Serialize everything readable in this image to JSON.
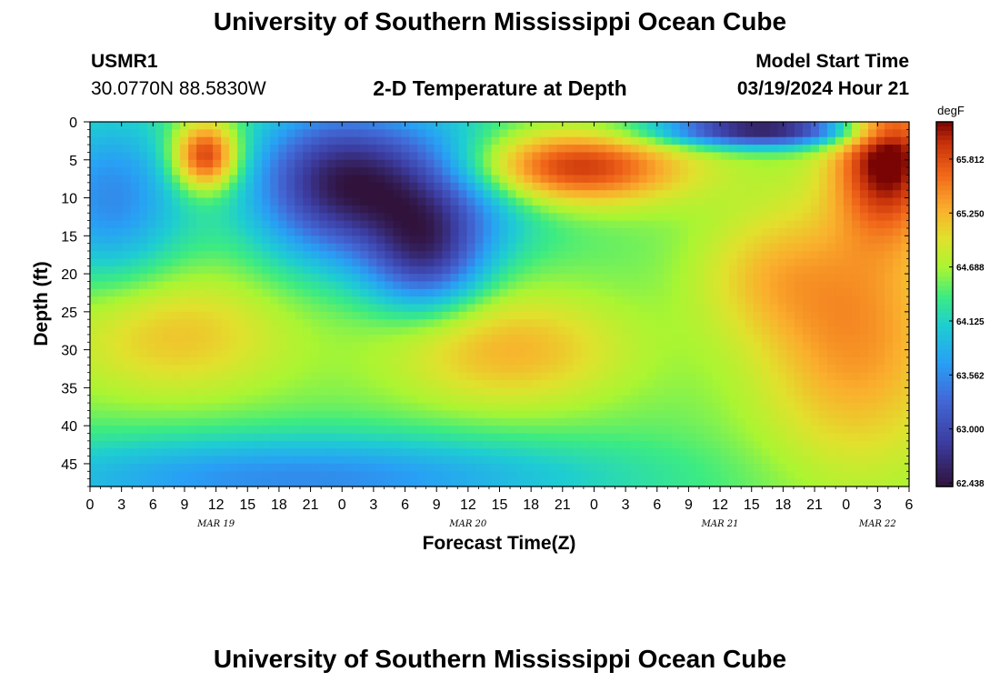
{
  "page": {
    "title": "University of Southern Mississippi Ocean Cube",
    "station_id": "USMR1",
    "station_coords": "30.0770N  88.5830W",
    "plot_title": "2-D Temperature at Depth",
    "model_start_label": "Model Start Time",
    "model_start_value": "03/19/2024 Hour 21",
    "footer_title": "University of Southern Mississippi Ocean Cube"
  },
  "chart_data": {
    "type": "heatmap",
    "title": "2-D Temperature at Depth",
    "xlabel": "Forecast Time(Z)",
    "ylabel": "Depth (ft)",
    "x_tick_labels": [
      "0",
      "3",
      "6",
      "9",
      "12",
      "15",
      "18",
      "21",
      "0",
      "3",
      "6",
      "9",
      "12",
      "15",
      "18",
      "21",
      "0",
      "3",
      "6",
      "9",
      "12",
      "15",
      "18",
      "21",
      "0",
      "3",
      "6"
    ],
    "x_date_labels": [
      {
        "label": "MAR 19",
        "tick_index": 4
      },
      {
        "label": "MAR 20",
        "tick_index": 12
      },
      {
        "label": "MAR 21",
        "tick_index": 20
      },
      {
        "label": "MAR 22",
        "tick_index": 25
      }
    ],
    "ylim": [
      0,
      48
    ],
    "y_ticks": [
      0,
      5,
      10,
      15,
      20,
      25,
      30,
      35,
      40,
      45
    ],
    "colorbar": {
      "unit": "degF",
      "range": [
        62.4,
        66.2
      ],
      "tick_labels": [
        "65.812",
        "65.250",
        "64.688",
        "64.125",
        "63.562",
        "63.000",
        "62.438"
      ],
      "tick_values": [
        65.812,
        65.25,
        64.688,
        64.125,
        63.562,
        63.0,
        62.438
      ]
    },
    "field_blobs": [
      {
        "t": 11.0,
        "d": 4.5,
        "st": 2.2,
        "sd": 3.2,
        "amp": 0.95
      },
      {
        "t": 45.0,
        "d": 6.0,
        "st": 8.0,
        "sd": 3.5,
        "amp": 0.95
      },
      {
        "t": 76.0,
        "d": 4.0,
        "st": 3.5,
        "sd": 7.0,
        "amp": 1.0
      },
      {
        "t": 73.0,
        "d": 28.0,
        "st": 7.0,
        "sd": 13.0,
        "amp": 0.55
      },
      {
        "t": 8.0,
        "d": 28.0,
        "st": 8.0,
        "sd": 6.0,
        "amp": 0.4
      },
      {
        "t": 40.0,
        "d": 30.0,
        "st": 8.0,
        "sd": 5.5,
        "amp": 0.45
      },
      {
        "t": 64.0,
        "d": 20.0,
        "st": 5.0,
        "sd": 6.0,
        "amp": 0.25
      },
      {
        "t": 30.0,
        "d": 8.0,
        "st": 8.0,
        "sd": 6.0,
        "amp": -1.0
      },
      {
        "t": 32.0,
        "d": 18.0,
        "st": 4.0,
        "sd": 5.0,
        "amp": -0.8
      },
      {
        "t": 64.0,
        "d": 1.0,
        "st": 7.0,
        "sd": 1.6,
        "amp": -1.2
      },
      {
        "t": 2.0,
        "d": 10.0,
        "st": 5.0,
        "sd": 8.0,
        "amp": -0.55
      },
      {
        "t": 22.0,
        "d": 8.0,
        "st": 5.0,
        "sd": 8.0,
        "amp": -0.5
      },
      {
        "t": 20.0,
        "d": 47.0,
        "st": 20.0,
        "sd": 4.0,
        "amp": -0.55
      }
    ],
    "field_base": 0.55
  }
}
